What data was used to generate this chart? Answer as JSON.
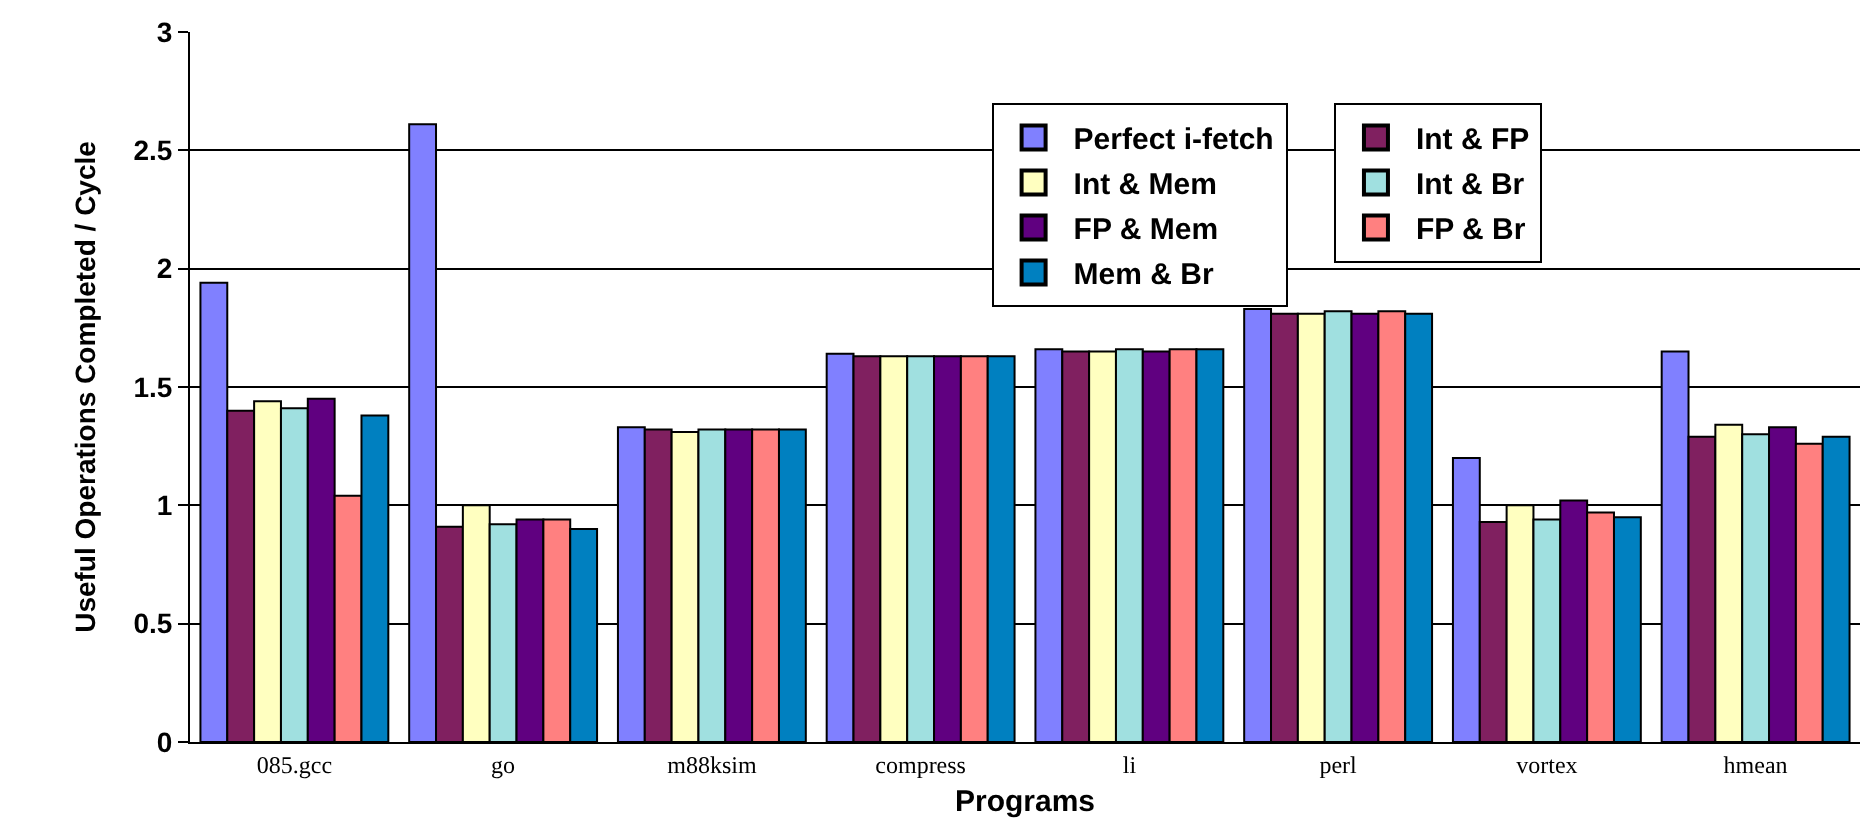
{
  "chart_data": {
    "type": "bar",
    "xlabel": "Programs",
    "ylabel": "Useful Operations Completed / Cycle",
    "categories": [
      "085.gcc",
      "go",
      "m88ksim",
      "compress",
      "li",
      "perl",
      "vortex",
      "hmean"
    ],
    "series": [
      {
        "name": "Perfect i-fetch",
        "color": "#8080ff",
        "values": [
          1.94,
          2.61,
          1.33,
          1.64,
          1.66,
          1.83,
          1.2,
          1.65
        ]
      },
      {
        "name": "Int & FP",
        "color": "#802060",
        "values": [
          1.4,
          0.91,
          1.32,
          1.63,
          1.65,
          1.81,
          0.93,
          1.29
        ]
      },
      {
        "name": "Int & Mem",
        "color": "#ffffc0",
        "values": [
          1.44,
          1.0,
          1.31,
          1.63,
          1.65,
          1.81,
          1.0,
          1.34
        ]
      },
      {
        "name": "Int & Br",
        "color": "#a0e0e0",
        "values": [
          1.41,
          0.92,
          1.32,
          1.63,
          1.66,
          1.82,
          0.94,
          1.3
        ]
      },
      {
        "name": "FP & Mem",
        "color": "#600080",
        "values": [
          1.45,
          0.94,
          1.32,
          1.63,
          1.65,
          1.81,
          1.02,
          1.33
        ]
      },
      {
        "name": "FP & Br",
        "color": "#ff8080",
        "values": [
          1.04,
          0.94,
          1.32,
          1.63,
          1.66,
          1.82,
          0.97,
          1.26
        ]
      },
      {
        "name": "Mem & Br",
        "color": "#0080c0",
        "values": [
          1.38,
          0.9,
          1.32,
          1.63,
          1.66,
          1.81,
          0.95,
          1.29
        ]
      }
    ],
    "ylim": [
      0,
      3
    ],
    "yticks": [
      0,
      0.5,
      1,
      1.5,
      2,
      2.5,
      3
    ],
    "grid": "y",
    "legend": "top right"
  }
}
